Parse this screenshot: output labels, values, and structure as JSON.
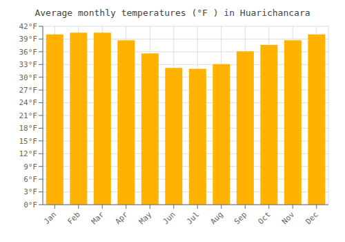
{
  "chart_data": {
    "type": "bar",
    "title": "Average monthly temperatures (°F ) in Huarichancara",
    "categories": [
      "Jan",
      "Feb",
      "Mar",
      "Apr",
      "May",
      "Jun",
      "Jul",
      "Aug",
      "Sep",
      "Oct",
      "Nov",
      "Dec"
    ],
    "values": [
      40.1,
      40.5,
      40.5,
      38.7,
      35.6,
      32.2,
      32.0,
      33.1,
      36.1,
      37.6,
      38.7,
      40.1
    ],
    "color": "#FFB300",
    "ylim": [
      0,
      42
    ],
    "yticks": [
      {
        "value": 0,
        "label": "0°F"
      },
      {
        "value": 3,
        "label": "3°F"
      },
      {
        "value": 6,
        "label": "6°F"
      },
      {
        "value": 9,
        "label": "9°F"
      },
      {
        "value": 12,
        "label": "12°F"
      },
      {
        "value": 15,
        "label": "15°F"
      },
      {
        "value": 18,
        "label": "18°F"
      },
      {
        "value": 21,
        "label": "21°F"
      },
      {
        "value": 24,
        "label": "24°F"
      },
      {
        "value": 27,
        "label": "27°F"
      },
      {
        "value": 30,
        "label": "30°F"
      },
      {
        "value": 33,
        "label": "33°F"
      },
      {
        "value": 36,
        "label": "36°F"
      },
      {
        "value": 39,
        "label": "39°F"
      },
      {
        "value": 42,
        "label": "42°F"
      }
    ],
    "grid": true
  }
}
